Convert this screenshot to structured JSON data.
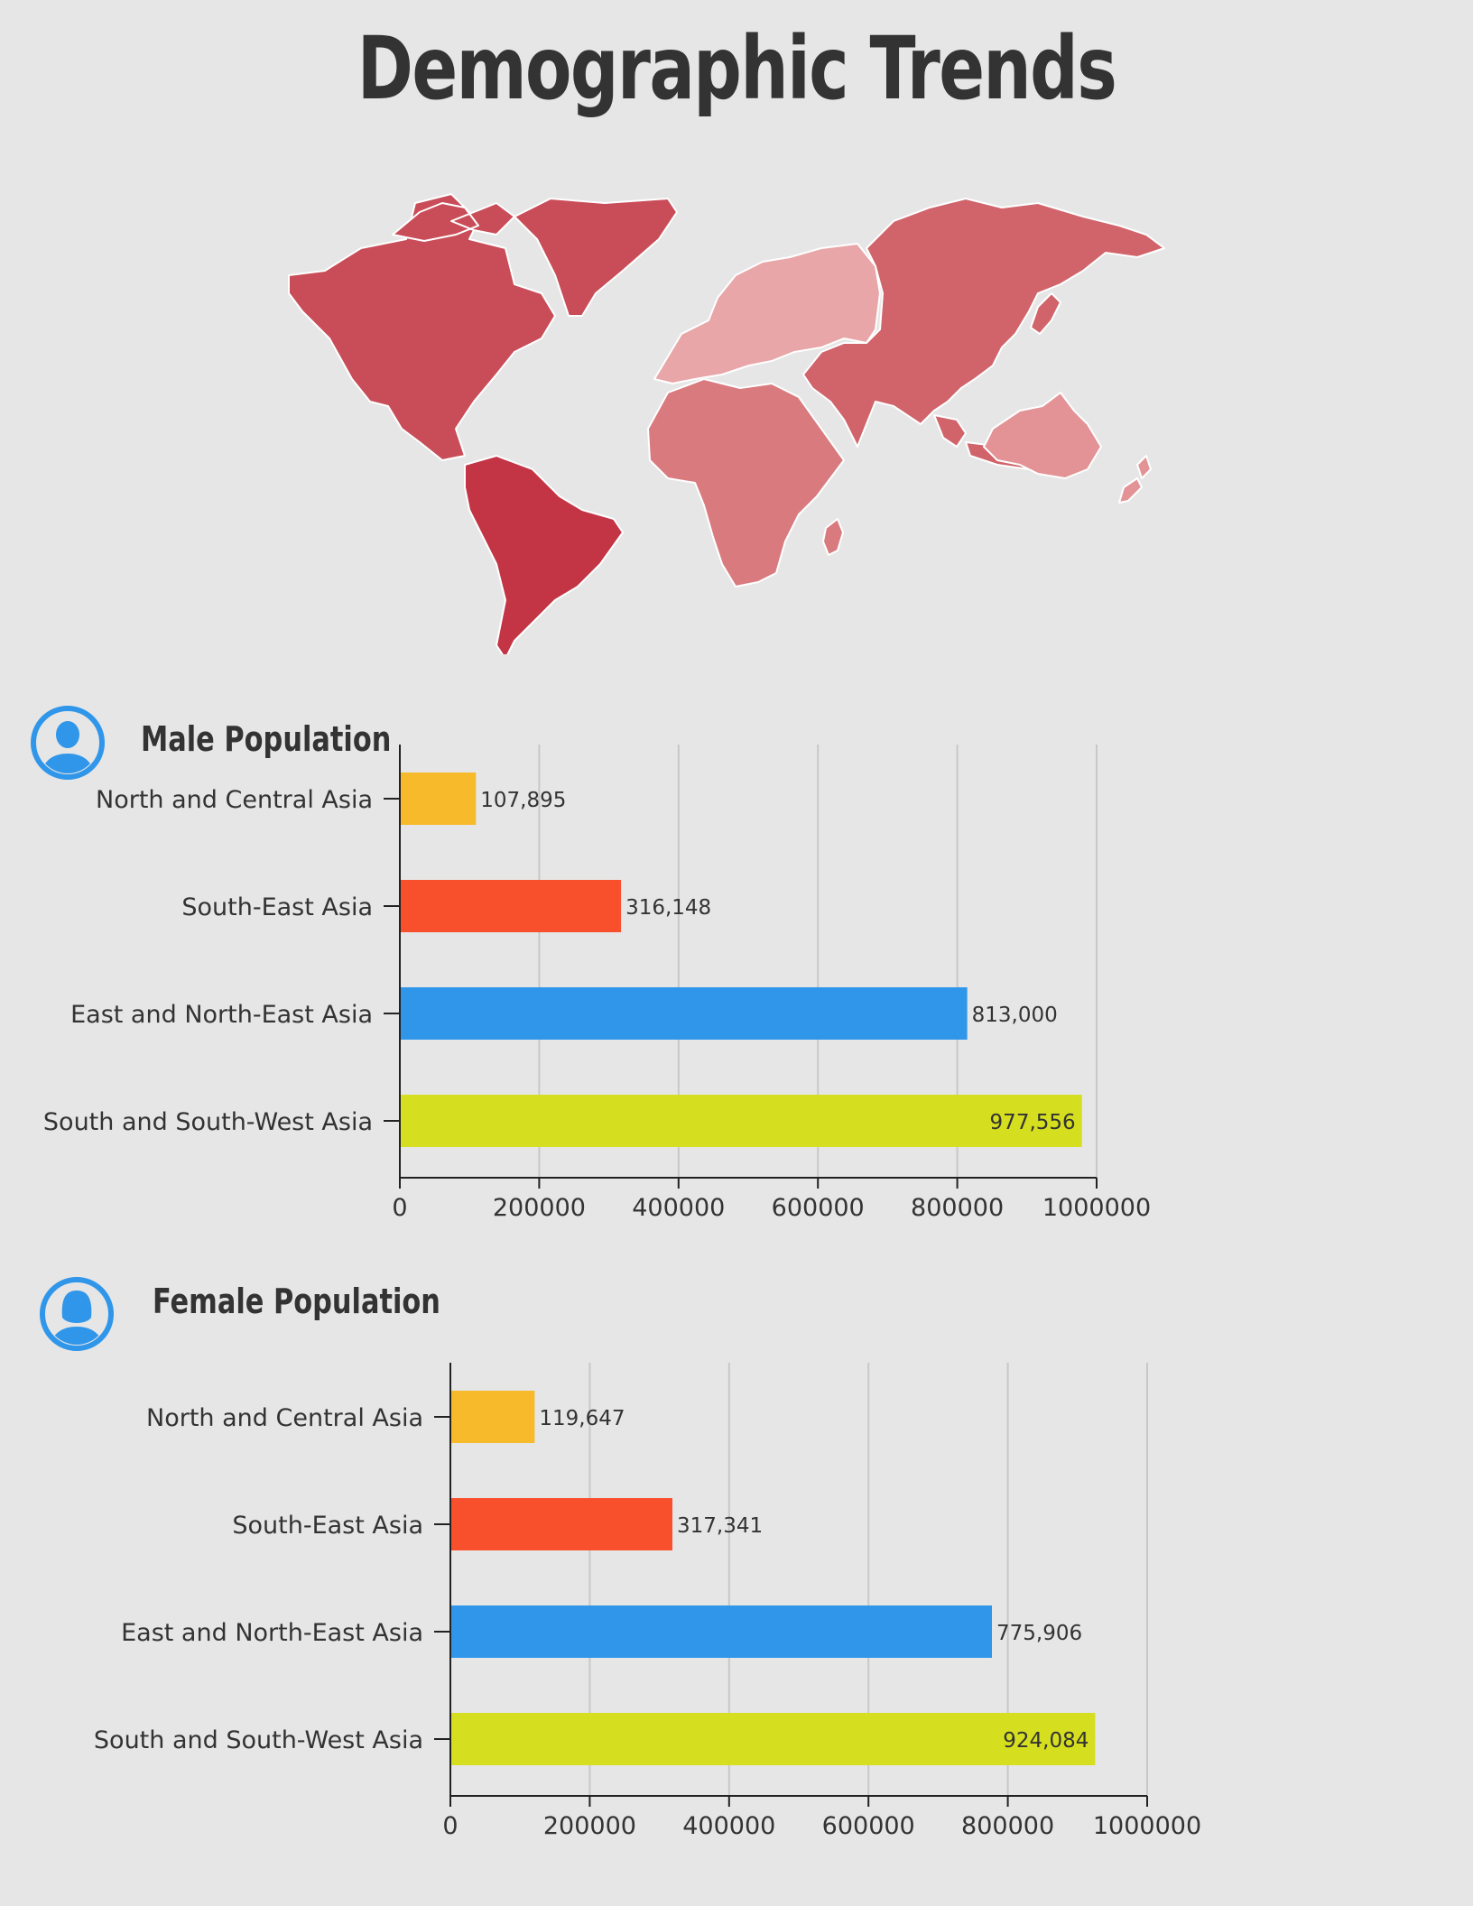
{
  "title": "Demographic Trends",
  "colors": {
    "background": "#e6e6e6",
    "icon_blue": "#2f96ea",
    "map_americas": "#c94d58",
    "map_south_america": "#c33444",
    "map_europe": "#e8a6a8",
    "map_africa": "#d97a7e",
    "map_asia": "#d0646a",
    "map_oceania": "#e39295"
  },
  "sections": [
    {
      "title": "Male Population",
      "icon": "male-user-icon"
    },
    {
      "title": "Female Population",
      "icon": "female-user-icon"
    }
  ],
  "chart_data": [
    {
      "type": "bar",
      "orientation": "horizontal",
      "title": "Male Population",
      "categories": [
        "North and Central Asia",
        "South-East Asia",
        "East and North-East Asia",
        "South and South-West Asia"
      ],
      "values": [
        107895,
        316148,
        813000,
        977556
      ],
      "value_labels": [
        "107,895",
        "316,148",
        "813,000",
        "977,556"
      ],
      "colors": [
        "#f7ba2b",
        "#f84f2c",
        "#2f96ea",
        "#d6df1f"
      ],
      "xlim": [
        0,
        1000000
      ],
      "xticks": [
        "0",
        "200000",
        "400000",
        "600000",
        "800000",
        "1000000"
      ],
      "grid": true
    },
    {
      "type": "bar",
      "orientation": "horizontal",
      "title": "Female Population",
      "categories": [
        "North and Central Asia",
        "South-East Asia",
        "East and North-East Asia",
        "South and South-West Asia"
      ],
      "values": [
        119647,
        317341,
        775906,
        924084
      ],
      "value_labels": [
        "119,647",
        "317,341",
        "775,906",
        "924,084"
      ],
      "colors": [
        "#f7ba2b",
        "#f84f2c",
        "#2f96ea",
        "#d6df1f"
      ],
      "xlim": [
        0,
        1000000
      ],
      "xticks": [
        "0",
        "200000",
        "400000",
        "600000",
        "800000",
        "1000000"
      ],
      "grid": true
    }
  ]
}
